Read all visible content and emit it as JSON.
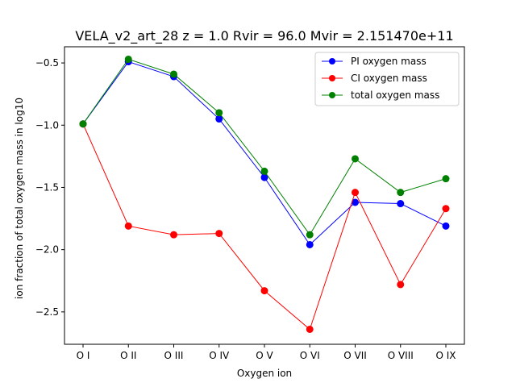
{
  "chart_data": {
    "type": "line",
    "title": "VELA_v2_art_28 z = 1.0 Rvir = 96.0 Mvir = 2.151470e+11",
    "xlabel": "Oxygen ion",
    "ylabel": "ion fraction of total oxygen mass in log10",
    "categories": [
      "O I",
      "O II",
      "O III",
      "O IV",
      "O V",
      "O VI",
      "O VII",
      "O VIII",
      "O IX"
    ],
    "ylim": [
      -2.76,
      -0.37
    ],
    "yticks": [
      -2.5,
      -2.0,
      -1.5,
      -1.0,
      -0.5
    ],
    "ytick_labels": [
      "−2.5",
      "−2.0",
      "−1.5",
      "−1.0",
      "−0.5"
    ],
    "grid": false,
    "legend_position": "top-right",
    "series": [
      {
        "name": "PI oxygen mass",
        "color": "#0000ff",
        "values": [
          -0.99,
          -0.49,
          -0.61,
          -0.95,
          -1.42,
          -1.96,
          -1.62,
          -1.63,
          -1.81
        ]
      },
      {
        "name": "CI oxygen mass",
        "color": "#ff0000",
        "values": [
          -0.99,
          -1.81,
          -1.88,
          -1.87,
          -2.33,
          -2.64,
          -1.54,
          -2.28,
          -1.67
        ]
      },
      {
        "name": "total oxygen mass",
        "color": "#008000",
        "values": [
          -0.99,
          -0.47,
          -0.59,
          -0.9,
          -1.37,
          -1.88,
          -1.27,
          -1.54,
          -1.43
        ]
      }
    ]
  }
}
